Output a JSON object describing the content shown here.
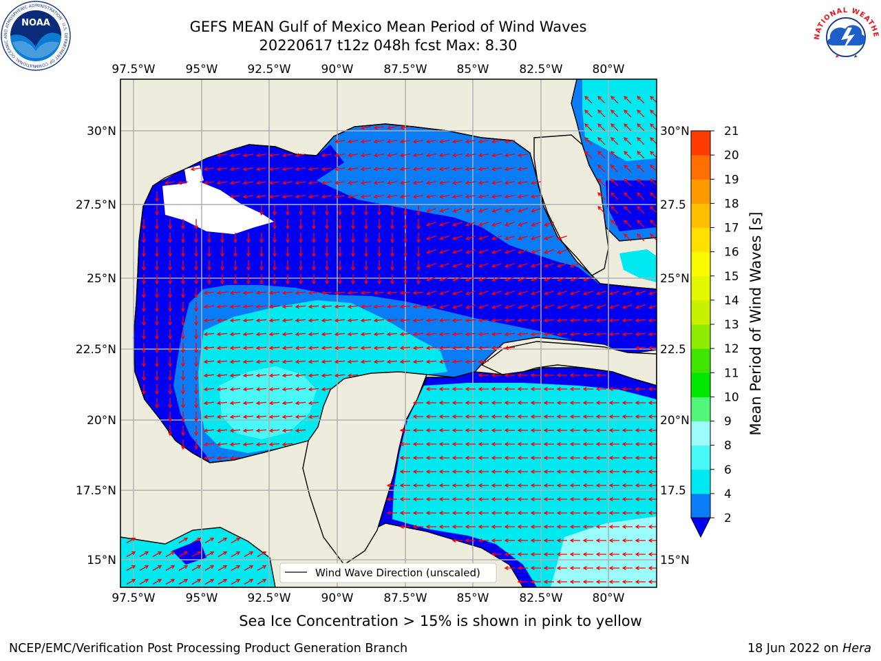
{
  "title": "GEFS MEAN Gulf of Mexico Mean Period of Wind Waves",
  "subtitle": "20220617 t12z 048h fcst   Max: 8.30",
  "map": {
    "lon_ticks": [
      "97.5°W",
      "95°W",
      "92.5°W",
      "90°W",
      "87.5°W",
      "85°W",
      "82.5°W",
      "80°W"
    ],
    "lat_ticks_left": [
      "30°N",
      "27.5°N",
      "25°N",
      "22.5°N",
      "20°N",
      "17.5°N",
      "15°N"
    ],
    "lat_ticks_right": [
      "30°N",
      "27.5",
      "25°N",
      "22.5",
      "20°N",
      "17.5",
      "15°N"
    ],
    "legend_label": "Wind Wave Direction (unscaled)",
    "colors": {
      "land": "#eeecdc",
      "ocean_2_4": "#0a7cf5",
      "ocean_0_2": "#0000f0",
      "ocean_4_6": "#00e8f0",
      "ocean_6_8": "#49f7f7",
      "ocean_8_9": "#9bfbfb",
      "arrow": "#ff0000",
      "no_data": "#ffffff"
    }
  },
  "colorbar": {
    "label": "Mean Period of Wind Waves [s]",
    "ticks": [
      "2",
      "4",
      "6",
      "8",
      "9",
      "10",
      "11",
      "12",
      "13",
      "14",
      "15",
      "16",
      "17",
      "18",
      "19",
      "20",
      "21"
    ],
    "colors": [
      "#0a7cf5",
      "#00e8f0",
      "#49f7f7",
      "#9bfbfb",
      "#50f77a",
      "#00e700",
      "#3fe400",
      "#8fec00",
      "#c6f200",
      "#e2f700",
      "#f9f900",
      "#ffe000",
      "#ffbf00",
      "#ff9b00",
      "#ff6e00",
      "#ff3c00"
    ],
    "under_color": "#0000f0"
  },
  "caption": "Sea Ice Concentration > 15% is shown in pink to yellow",
  "credit": "NCEP/EMC/Verification Post Processing Product Generation Branch",
  "date_prefix": "18 Jun 2022 on ",
  "date_machine": "Hera",
  "logos": {
    "left_text": "NOAA",
    "left_ring_text": "NATIONAL OCEANIC AND ATMOSPHERIC ADMINISTRATION · U.S. DEPARTMENT OF COMMERCE",
    "right_ring_text": "NATIONAL WEATHER SERVICE"
  }
}
